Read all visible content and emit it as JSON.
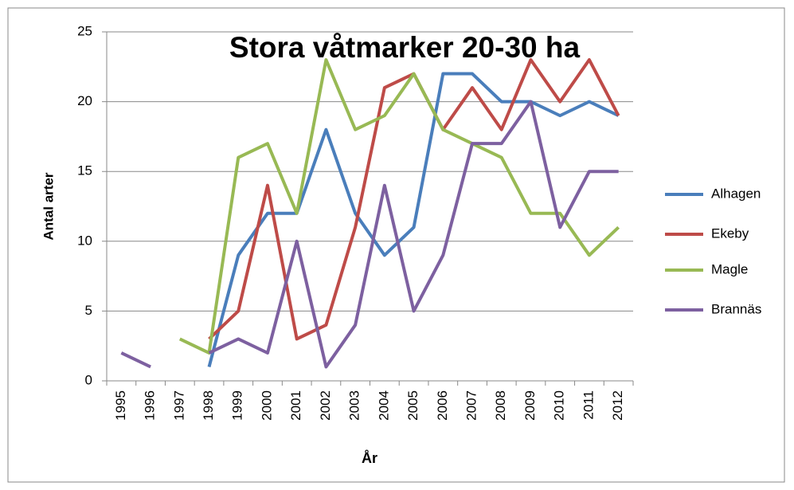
{
  "chart_data": {
    "type": "line",
    "title": "Stora våtmarker  20-30 ha",
    "x_label": "År",
    "y_label": "Antal arter",
    "categories": [
      "1995",
      "1996",
      "1997",
      "1998",
      "1999",
      "2000",
      "2001",
      "2002",
      "2003",
      "2004",
      "2005",
      "2006",
      "2007",
      "2008",
      "2009",
      "2010",
      "2011",
      "2012"
    ],
    "series": [
      {
        "name": "Alhagen",
        "color": "#4a7ebb",
        "values": [
          null,
          null,
          null,
          1,
          9,
          12,
          12,
          18,
          12,
          9,
          11,
          22,
          22,
          20,
          20,
          19,
          20,
          19
        ]
      },
      {
        "name": "Ekeby",
        "color": "#be4b48",
        "values": [
          null,
          null,
          null,
          3,
          5,
          14,
          3,
          4,
          11,
          21,
          22,
          18,
          21,
          18,
          23,
          20,
          23,
          19
        ]
      },
      {
        "name": "Magle",
        "color": "#98b954",
        "values": [
          null,
          null,
          3,
          2,
          16,
          17,
          12,
          23,
          18,
          19,
          22,
          18,
          17,
          16,
          12,
          12,
          9,
          11
        ]
      },
      {
        "name": "Brannäs",
        "color": "#7d60a0",
        "values": [
          2,
          1,
          null,
          2,
          3,
          2,
          10,
          1,
          4,
          14,
          5,
          9,
          17,
          17,
          20,
          11,
          15,
          15
        ]
      }
    ],
    "ylim": [
      0,
      25
    ],
    "yticks": [
      0,
      5,
      10,
      15,
      20,
      25
    ],
    "grid": true,
    "legend": "right"
  }
}
